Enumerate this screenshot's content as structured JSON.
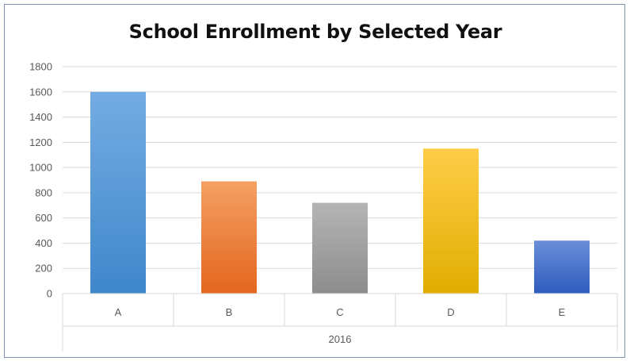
{
  "chart_data": {
    "type": "bar",
    "title": "School Enrollment by Selected Year",
    "categories": [
      "A",
      "B",
      "C",
      "D",
      "E"
    ],
    "group_label": "2016",
    "values": [
      1600,
      890,
      720,
      1150,
      420
    ],
    "ylim": [
      0,
      1800
    ],
    "yticks": [
      0,
      200,
      400,
      600,
      800,
      1000,
      1200,
      1400,
      1600,
      1800
    ],
    "grid": true,
    "legend": "none",
    "colors": [
      {
        "light": "#74ace2",
        "dark": "#3f87cb"
      },
      {
        "light": "#f5a064",
        "dark": "#e3661e"
      },
      {
        "light": "#b5b5b5",
        "dark": "#8d8d8d"
      },
      {
        "light": "#ffcd48",
        "dark": "#e0ae00"
      },
      {
        "light": "#6a8fd8",
        "dark": "#2e5bbf"
      }
    ]
  }
}
